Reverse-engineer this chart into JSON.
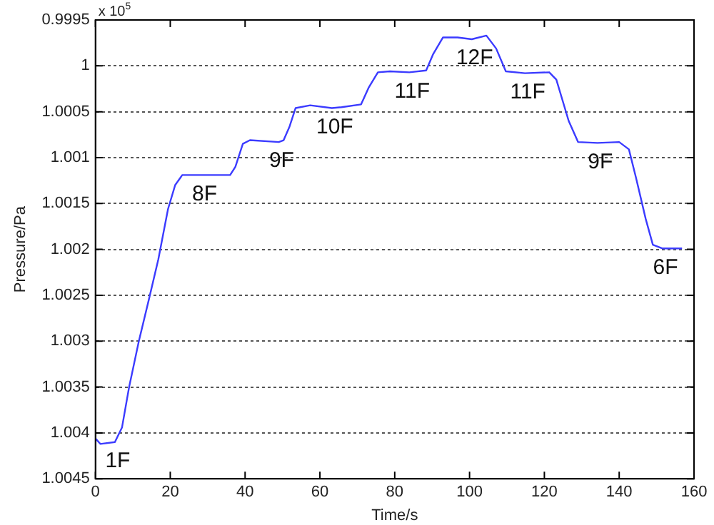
{
  "chart_data": {
    "type": "line",
    "xlabel": "Time/s",
    "ylabel": "Pressure/Pa",
    "x": [
      0,
      1.3,
      5.2,
      7.1,
      9,
      11.6,
      14.2,
      16.8,
      19.4,
      21.3,
      23.2,
      28.4,
      36,
      37.4,
      39.4,
      41.3,
      49,
      50.3,
      51.9,
      53.5,
      57.4,
      63.2,
      65.8,
      71,
      73,
      75.5,
      78.7,
      83.9,
      88.4,
      90.3,
      92.9,
      96.8,
      100.6,
      104.5,
      107.1,
      109.7,
      114.8,
      121.3,
      123.2,
      126.5,
      129,
      134.2,
      140,
      142.6,
      144.5,
      147.1,
      149,
      151.6,
      156.8
    ],
    "series": [
      {
        "color": "#3b3bff",
        "values": [
          1.00406,
          1.00412,
          1.0041,
          1.00394,
          1.0035,
          1.003,
          1.00256,
          1.00211,
          1.00156,
          1.0013,
          1.00119,
          1.00119,
          1.00119,
          1.0011,
          1.00085,
          1.00081,
          1.00083,
          1.00081,
          1.00066,
          1.00046,
          1.00043,
          1.00046,
          1.00045,
          1.00042,
          1.00024,
          1.00007,
          1.00006,
          1.00007,
          1.00005,
          0.99987,
          0.99969,
          0.99969,
          0.99971,
          0.99967,
          0.99981,
          1.00006,
          1.00008,
          1.00007,
          1.00015,
          1.0006,
          1.00083,
          1.00084,
          1.00083,
          1.00091,
          1.00122,
          1.00167,
          1.00195,
          1.00199,
          1.00199
        ]
      }
    ],
    "xlim": [
      0,
      160
    ],
    "xticks": [
      0,
      20,
      40,
      60,
      80,
      100,
      120,
      140,
      160
    ],
    "ylim": [
      1.0045,
      0.9995
    ],
    "yticks": [
      0.9995,
      1,
      1.0005,
      1.001,
      1.0015,
      1.002,
      1.0025,
      1.003,
      1.0035,
      1.004,
      1.0045
    ],
    "grid": "y",
    "legend": false,
    "marker": "none",
    "line_style": "solid",
    "annotations": [
      "x 10$^{5}$",
      {
        "text": "1F",
        "x": 5.2,
        "y": 1.0041
      },
      {
        "text": "8F",
        "x": 28.4,
        "y": 1.00119
      },
      {
        "text": "9F",
        "x": 49,
        "y": 1.00083
      },
      {
        "text": "10F",
        "x": 63.2,
        "y": 1.00046
      },
      {
        "text": "11F",
        "x": 83.9,
        "y": 1.00007
      },
      {
        "text": "12F",
        "x": 100.6,
        "y": 0.99971
      },
      {
        "text": "11F",
        "x": 114.8,
        "y": 1.00008
      },
      {
        "text": "9F",
        "x": 134.2,
        "y": 1.00084
      },
      {
        "text": "6F",
        "x": 151.6,
        "y": 1.00199
      }
    ]
  }
}
